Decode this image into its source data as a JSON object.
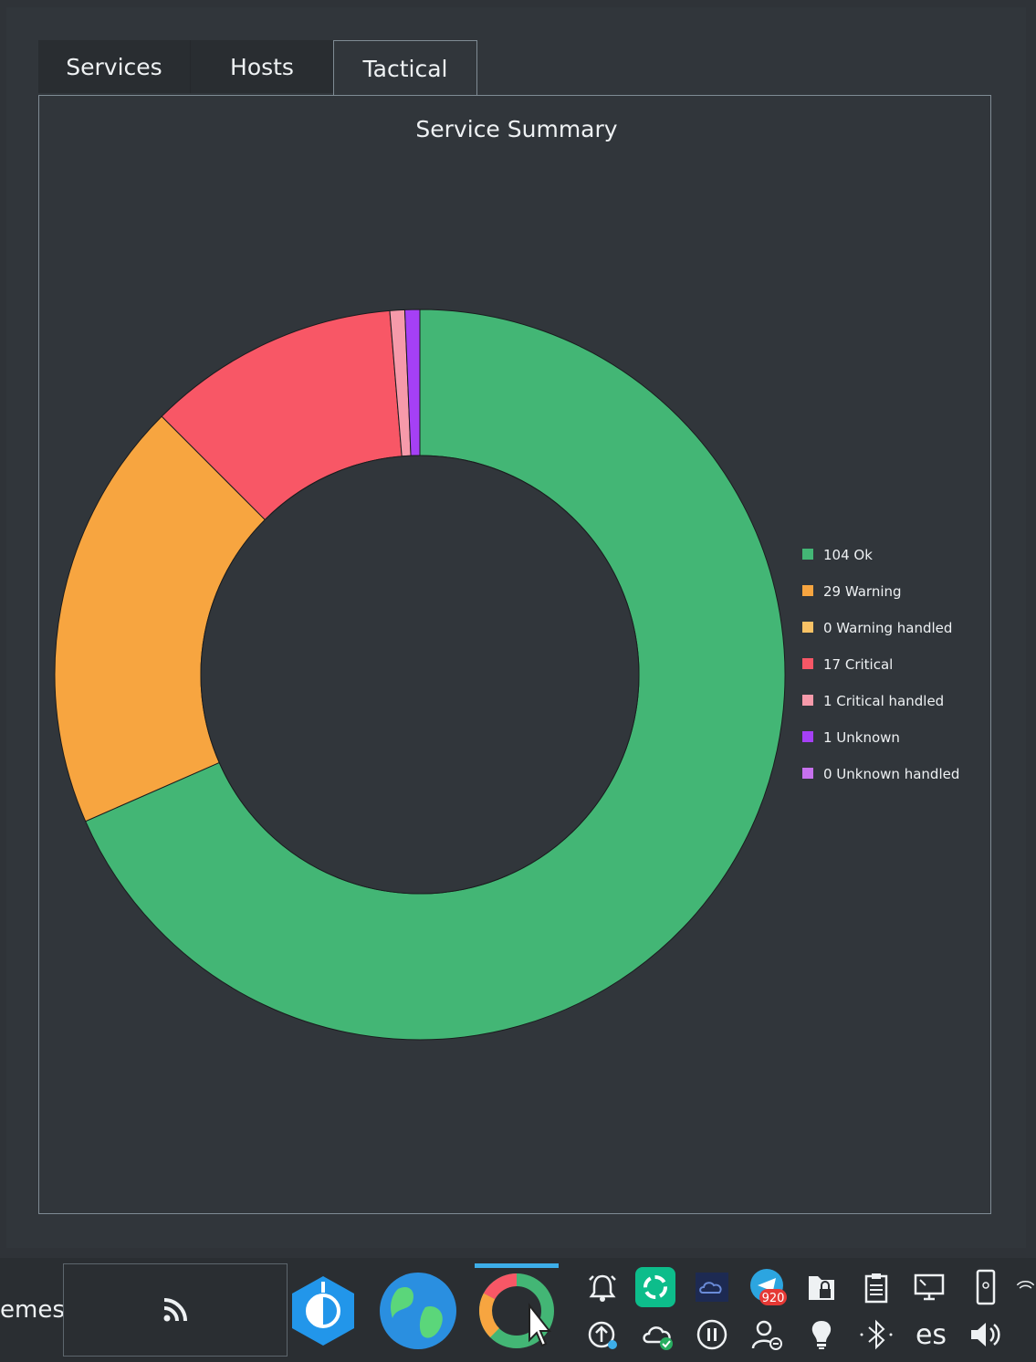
{
  "tabs": [
    {
      "label": "Services",
      "active": false
    },
    {
      "label": "Hosts",
      "active": false
    },
    {
      "label": "Tactical",
      "active": true
    }
  ],
  "chart_data": {
    "type": "pie",
    "donut": true,
    "title": "Service Summary",
    "legend_position": "right",
    "slices": [
      {
        "label": "104 Ok",
        "value": 104,
        "color": "#43b675"
      },
      {
        "label": "29 Warning",
        "value": 29,
        "color": "#f7a540"
      },
      {
        "label": "0 Warning handled",
        "value": 0,
        "color": "#f9c265"
      },
      {
        "label": "17 Critical",
        "value": 17,
        "color": "#f85766"
      },
      {
        "label": "1 Critical handled",
        "value": 1,
        "color": "#f69aaa"
      },
      {
        "label": "1 Unknown",
        "value": 1,
        "color": "#a540f5"
      },
      {
        "label": "0 Unknown handled",
        "value": 0,
        "color": "#c771ee"
      }
    ]
  },
  "taskbar": {
    "left_text": "emes",
    "language": "es",
    "telegram_badge": "920",
    "icons": [
      "rss-icon",
      "keepassxc-icon",
      "globe-icon",
      "donut-chart-icon",
      "cursor-icon"
    ],
    "tray_icons": [
      "alarm-icon",
      "element-icon",
      "cloud-app-icon",
      "telegram-icon",
      "vault-icon",
      "clipboard-icon",
      "display-icon",
      "phone-icon",
      "wifi-icon",
      "update-icon",
      "cloud-sync-icon",
      "pause-icon",
      "user-icon",
      "lightbulb-icon",
      "bluetooth-icon",
      "volume-icon"
    ]
  }
}
